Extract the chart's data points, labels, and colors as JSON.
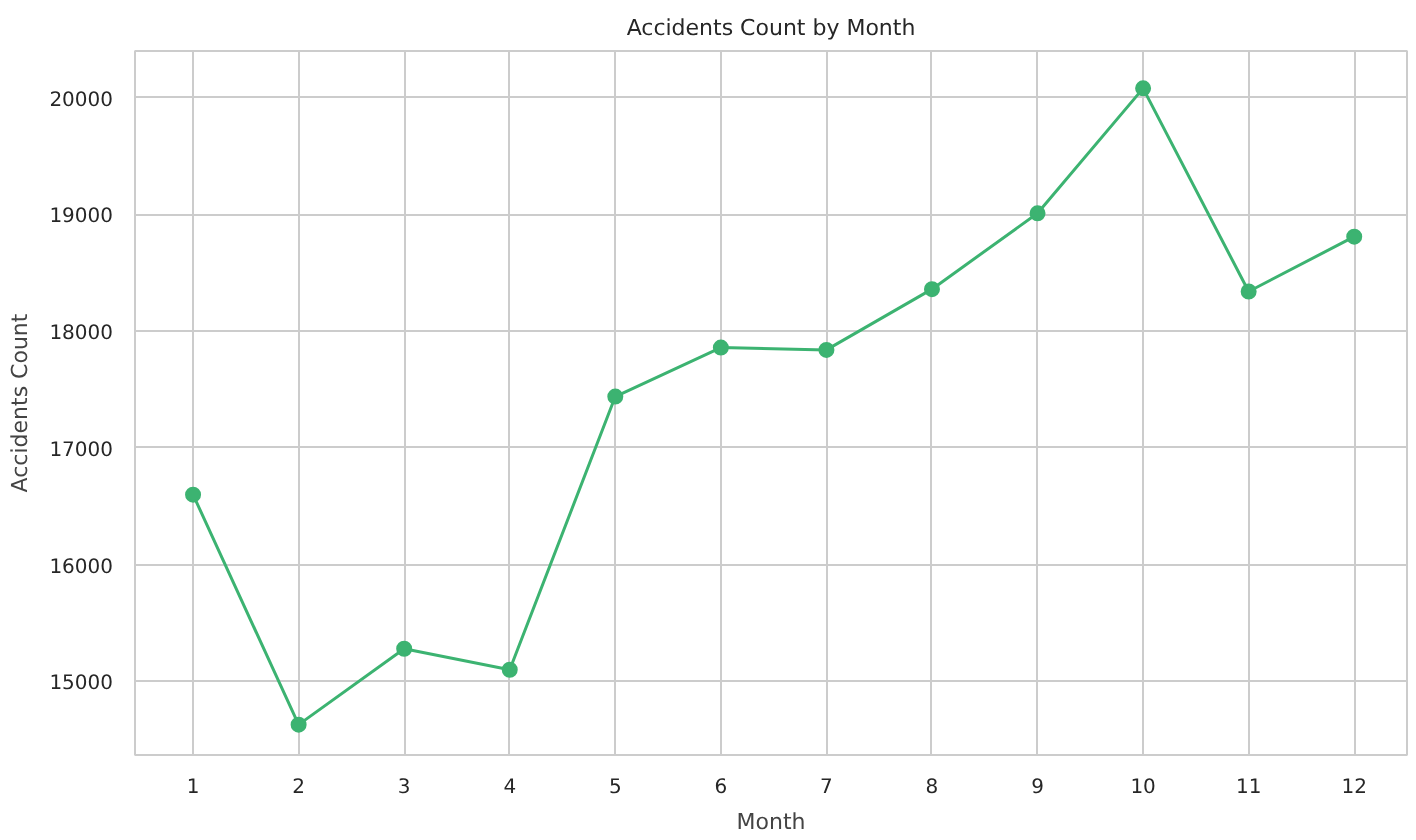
{
  "chart_data": {
    "type": "line",
    "title": "Accidents Count by Month",
    "xlabel": "Month",
    "ylabel": "Accidents Count",
    "x": [
      1,
      2,
      3,
      4,
      5,
      6,
      7,
      8,
      9,
      10,
      11,
      12
    ],
    "series": [
      {
        "color": "#3cb371",
        "values": [
          16600,
          14630,
          15280,
          15100,
          17440,
          17860,
          17840,
          18360,
          19010,
          20080,
          18340,
          18810
        ]
      }
    ],
    "xlim": [
      0.45,
      12.5
    ],
    "xticks": [
      1,
      2,
      3,
      4,
      5,
      6,
      7,
      8,
      9,
      10,
      11,
      12
    ],
    "ylim": [
      14370,
      20400
    ],
    "yticks": [
      15000,
      16000,
      17000,
      18000,
      19000,
      20000
    ],
    "grid": true,
    "marker": "circle",
    "line_style": "solid"
  }
}
